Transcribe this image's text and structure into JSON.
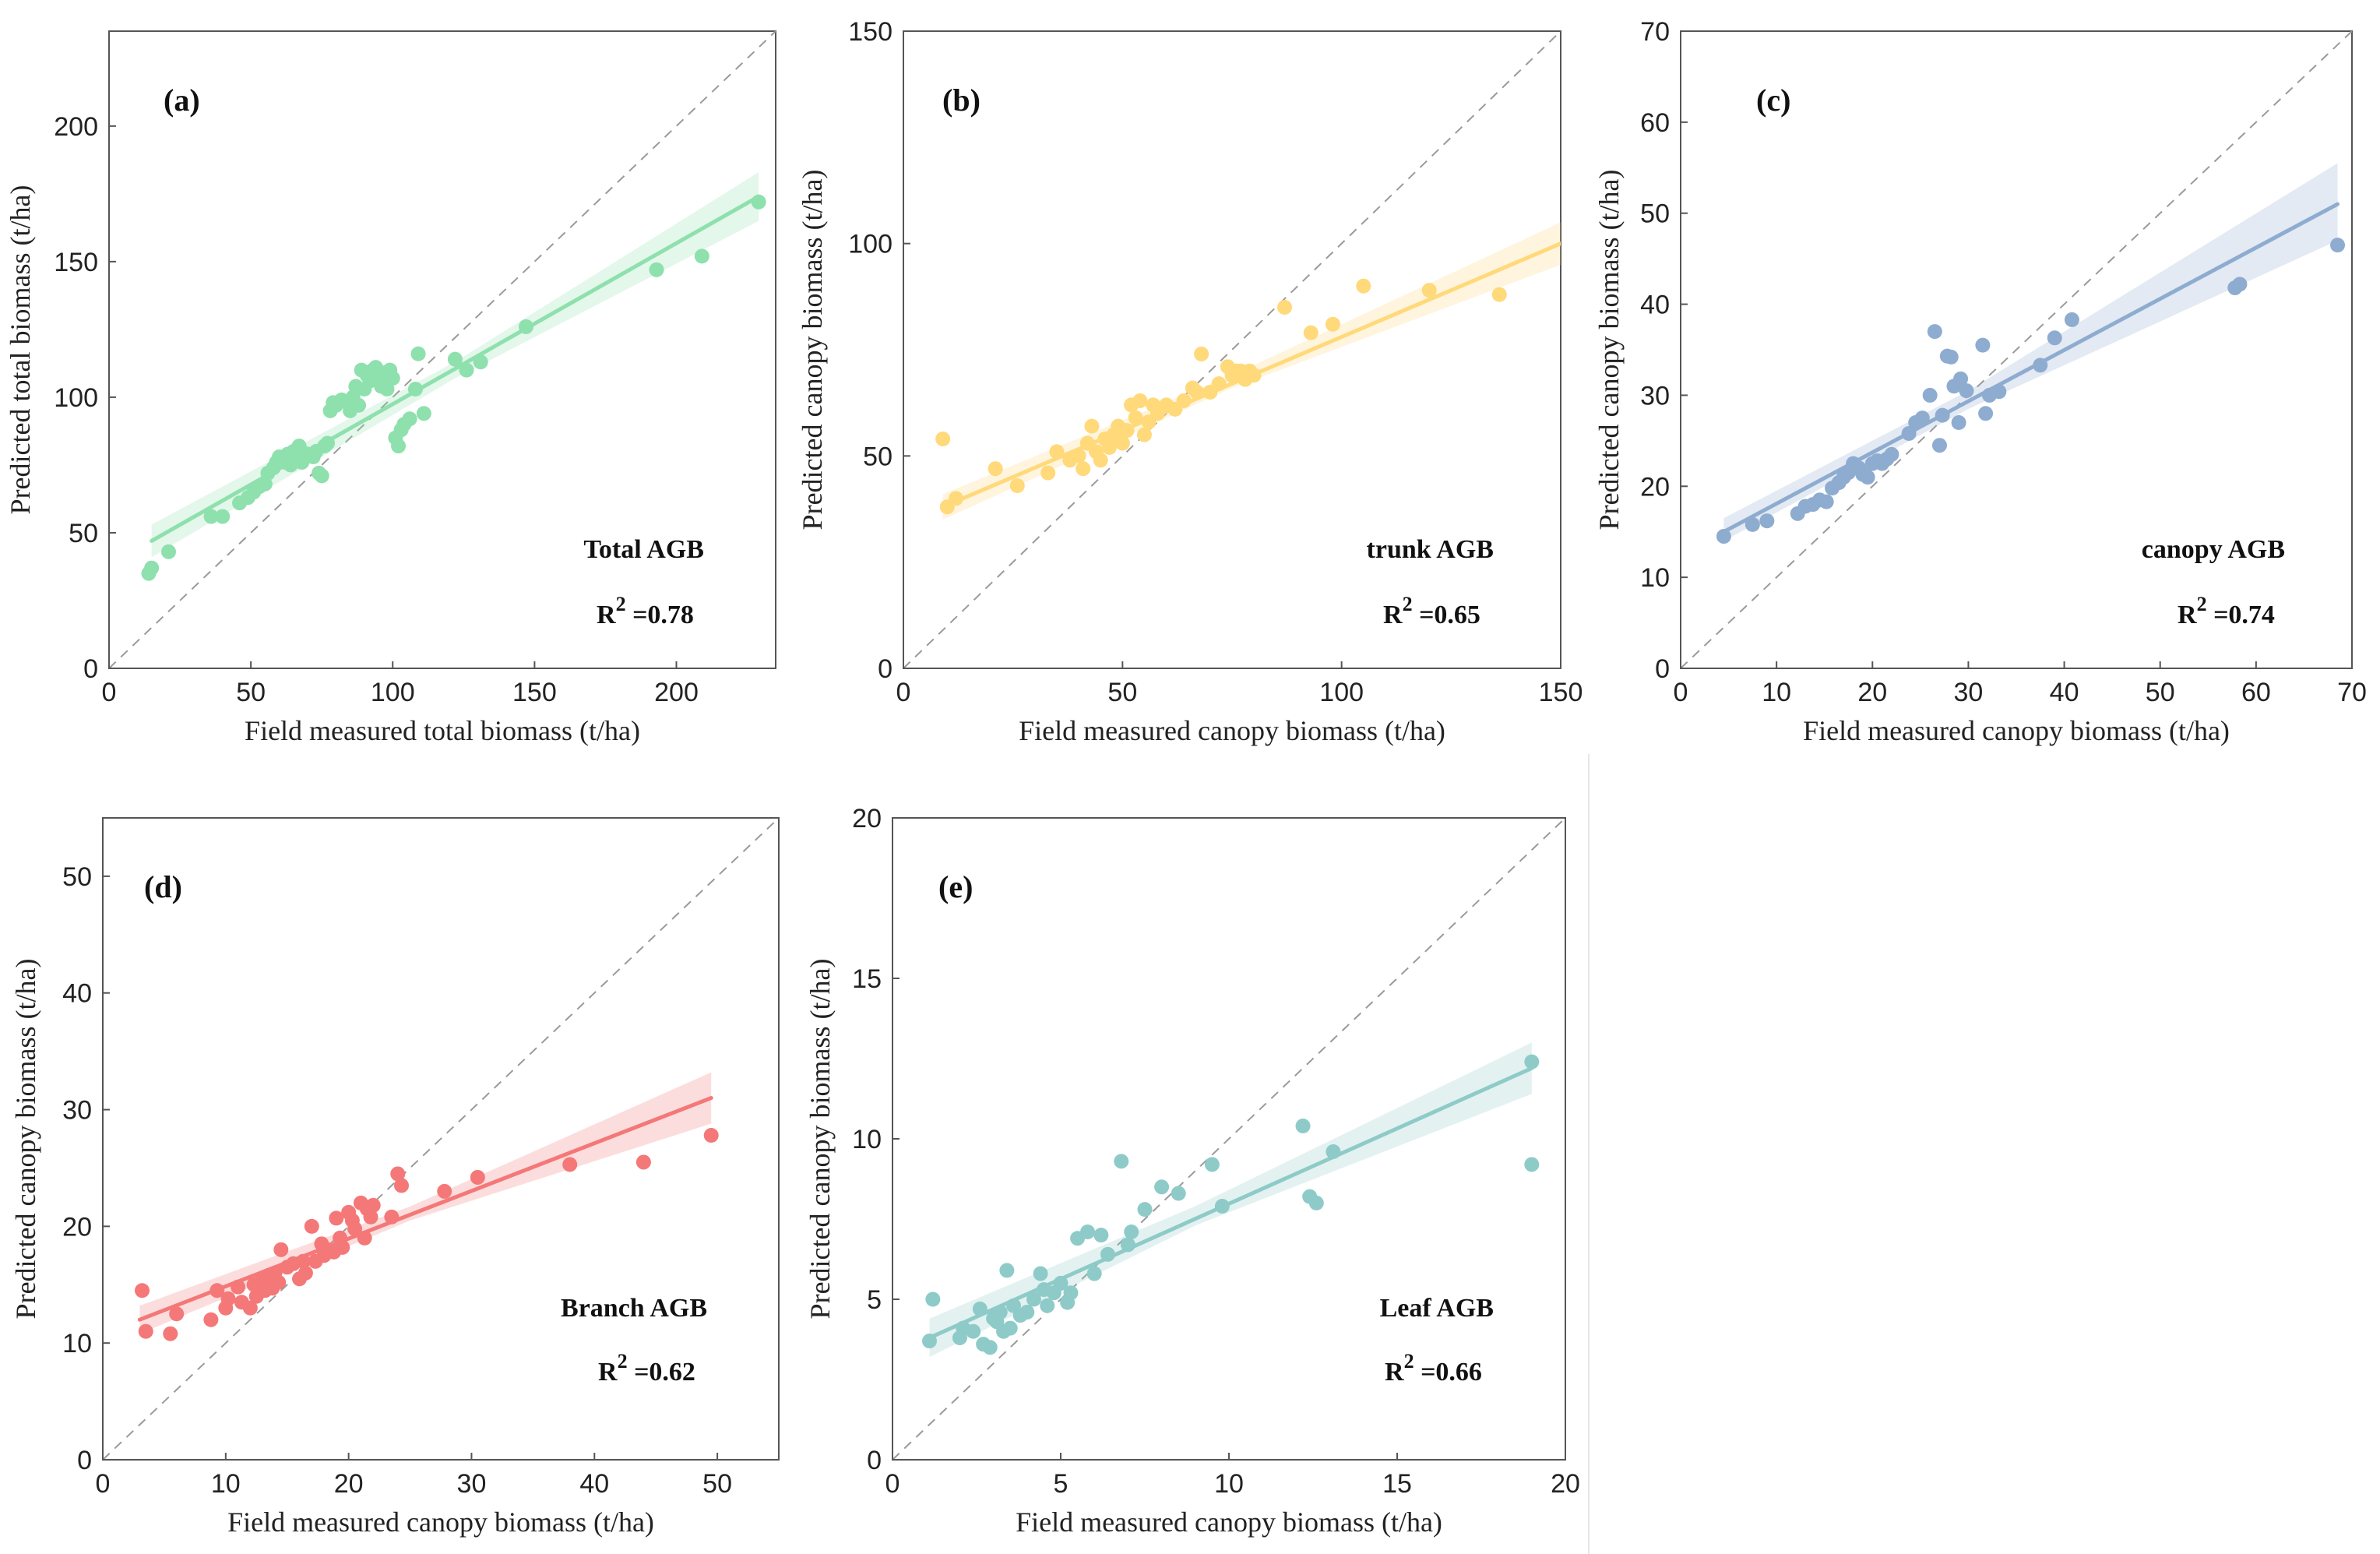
{
  "chart_data": [
    {
      "panel_label": "(a)",
      "type": "scatter",
      "color": "#8ee0ad",
      "xlabel": "Field measured total biomass (t/ha)",
      "ylabel": "Predicted total biomass (t/ha)",
      "xlim": [
        0,
        235
      ],
      "ylim": [
        0,
        235
      ],
      "xticks": [
        0,
        50,
        100,
        150,
        200
      ],
      "yticks": [
        0,
        50,
        100,
        150,
        200
      ],
      "annotation": "Total AGB",
      "r2_label": "R",
      "r2_sup": "2",
      "r2_value": " =0.78",
      "fit": {
        "x1": 15,
        "y1": 47,
        "x2": 229,
        "y2": 174
      },
      "band": [
        [
          15,
          41,
          53
        ],
        [
          122,
          107,
          113
        ],
        [
          229,
          165,
          183
        ]
      ],
      "points": [
        [
          14,
          35
        ],
        [
          15,
          37
        ],
        [
          21,
          43
        ],
        [
          36,
          56
        ],
        [
          40,
          56
        ],
        [
          46,
          61
        ],
        [
          49,
          63
        ],
        [
          51,
          65
        ],
        [
          53,
          67
        ],
        [
          55,
          68
        ],
        [
          56,
          72
        ],
        [
          58,
          74
        ],
        [
          59,
          76
        ],
        [
          60,
          78
        ],
        [
          61,
          77
        ],
        [
          62,
          76
        ],
        [
          63,
          79
        ],
        [
          64,
          75
        ],
        [
          65,
          80
        ],
        [
          66,
          78
        ],
        [
          67,
          82
        ],
        [
          68,
          80
        ],
        [
          68,
          76
        ],
        [
          70,
          79
        ],
        [
          72,
          78
        ],
        [
          73,
          80
        ],
        [
          74,
          72
        ],
        [
          75,
          71
        ],
        [
          76,
          82
        ],
        [
          77,
          83
        ],
        [
          78,
          95
        ],
        [
          79,
          98
        ],
        [
          80,
          97
        ],
        [
          82,
          99
        ],
        [
          84,
          98
        ],
        [
          85,
          95
        ],
        [
          86,
          100
        ],
        [
          87,
          104
        ],
        [
          88,
          97
        ],
        [
          89,
          110
        ],
        [
          90,
          103
        ],
        [
          91,
          108
        ],
        [
          92,
          106
        ],
        [
          93,
          110
        ],
        [
          94,
          111
        ],
        [
          95,
          107
        ],
        [
          96,
          104
        ],
        [
          97,
          109
        ],
        [
          98,
          103
        ],
        [
          99,
          110
        ],
        [
          100,
          107
        ],
        [
          101,
          85
        ],
        [
          102,
          82
        ],
        [
          103,
          88
        ],
        [
          104,
          90
        ],
        [
          106,
          92
        ],
        [
          108,
          103
        ],
        [
          109,
          116
        ],
        [
          111,
          94
        ],
        [
          122,
          114
        ],
        [
          126,
          110
        ],
        [
          131,
          113
        ],
        [
          147,
          126
        ],
        [
          193,
          147
        ],
        [
          209,
          152
        ],
        [
          229,
          172
        ]
      ]
    },
    {
      "panel_label": "(b)",
      "type": "scatter",
      "color": "#ffd97a",
      "xlabel": "Field measured canopy biomass (t/ha)",
      "ylabel": "Predicted canopy biomass (t/ha)",
      "xlim": [
        0,
        150
      ],
      "ylim": [
        0,
        150
      ],
      "xticks": [
        0,
        50,
        100,
        150
      ],
      "yticks": [
        0,
        50,
        100,
        150
      ],
      "annotation": "trunk AGB",
      "r2_label": "R",
      "r2_sup": "2",
      "r2_value": " =0.65",
      "fit": {
        "x1": 9,
        "y1": 38,
        "x2": 150,
        "y2": 100
      },
      "band": [
        [
          9,
          35,
          41
        ],
        [
          75,
          66,
          69
        ],
        [
          150,
          95,
          105
        ]
      ],
      "points": [
        [
          9,
          54
        ],
        [
          10,
          38
        ],
        [
          12,
          40
        ],
        [
          21,
          47
        ],
        [
          26,
          43
        ],
        [
          33,
          46
        ],
        [
          35,
          51
        ],
        [
          38,
          49
        ],
        [
          40,
          50
        ],
        [
          41,
          47
        ],
        [
          42,
          53
        ],
        [
          43,
          57
        ],
        [
          44,
          51
        ],
        [
          45,
          49
        ],
        [
          46,
          54
        ],
        [
          47,
          52
        ],
        [
          48,
          55
        ],
        [
          49,
          57
        ],
        [
          50,
          53
        ],
        [
          51,
          56
        ],
        [
          52,
          62
        ],
        [
          53,
          59
        ],
        [
          54,
          63
        ],
        [
          55,
          55
        ],
        [
          56,
          58
        ],
        [
          57,
          62
        ],
        [
          58,
          60
        ],
        [
          60,
          62
        ],
        [
          62,
          61
        ],
        [
          64,
          63
        ],
        [
          66,
          66
        ],
        [
          67,
          65
        ],
        [
          68,
          74
        ],
        [
          70,
          65
        ],
        [
          72,
          67
        ],
        [
          74,
          71
        ],
        [
          75,
          69
        ],
        [
          76,
          70
        ],
        [
          77,
          70
        ],
        [
          78,
          68
        ],
        [
          79,
          70
        ],
        [
          80,
          69
        ],
        [
          87,
          85
        ],
        [
          93,
          79
        ],
        [
          98,
          81
        ],
        [
          105,
          90
        ],
        [
          120,
          89
        ],
        [
          136,
          88
        ]
      ]
    },
    {
      "panel_label": "(c)",
      "type": "scatter",
      "color": "#8eaccf",
      "xlabel": "Field measured canopy biomass (t/ha)",
      "ylabel": "Predicted canopy biomass (t/ha)",
      "xlim": [
        0,
        70
      ],
      "ylim": [
        0,
        70
      ],
      "xticks": [
        0,
        10,
        20,
        30,
        40,
        50,
        60,
        70
      ],
      "yticks": [
        0,
        10,
        20,
        30,
        40,
        50,
        60,
        70
      ],
      "annotation": "canopy AGB",
      "r2_label": "R",
      "r2_sup": "2",
      "r2_value": " =0.74",
      "fit": {
        "x1": 4.5,
        "y1": 15,
        "x2": 68.5,
        "y2": 51
      },
      "band": [
        [
          4.5,
          14,
          16.5
        ],
        [
          30,
          28.5,
          30.5
        ],
        [
          68.5,
          47,
          55.5
        ]
      ],
      "points": [
        [
          4.5,
          14.5
        ],
        [
          7.5,
          15.8
        ],
        [
          9,
          16.2
        ],
        [
          12.2,
          17
        ],
        [
          13,
          17.8
        ],
        [
          13.8,
          18
        ],
        [
          14.5,
          18.5
        ],
        [
          15.2,
          18.3
        ],
        [
          15.8,
          19.8
        ],
        [
          16.5,
          20.4
        ],
        [
          17,
          21
        ],
        [
          17.5,
          21.5
        ],
        [
          18,
          22.5
        ],
        [
          18.6,
          22
        ],
        [
          19,
          21.3
        ],
        [
          19.5,
          21
        ],
        [
          20,
          22.5
        ],
        [
          20.5,
          22.8
        ],
        [
          21,
          22.5
        ],
        [
          21.5,
          23
        ],
        [
          22,
          23.5
        ],
        [
          23.8,
          25.8
        ],
        [
          24.5,
          27
        ],
        [
          25.2,
          27.5
        ],
        [
          26,
          30
        ],
        [
          26.5,
          37
        ],
        [
          27,
          24.5
        ],
        [
          27.3,
          27.8
        ],
        [
          27.8,
          34.3
        ],
        [
          28.2,
          34.2
        ],
        [
          28.5,
          31
        ],
        [
          29,
          27
        ],
        [
          29.2,
          31.8
        ],
        [
          29.8,
          30.5
        ],
        [
          31.5,
          35.5
        ],
        [
          31.8,
          28
        ],
        [
          32.2,
          30
        ],
        [
          33.2,
          30.4
        ],
        [
          37.5,
          33.3
        ],
        [
          39,
          36.3
        ],
        [
          40.8,
          38.3
        ],
        [
          57.8,
          41.8
        ],
        [
          58.3,
          42.2
        ],
        [
          68.5,
          46.5
        ]
      ]
    },
    {
      "panel_label": "(d)",
      "type": "scatter",
      "color": "#f47878",
      "xlabel": "Field measured canopy biomass (t/ha)",
      "ylabel": "Predicted canopy biomass (t/ha)",
      "xlim": [
        0,
        55
      ],
      "ylim": [
        0,
        55
      ],
      "xticks": [
        0,
        10,
        20,
        30,
        40,
        50
      ],
      "yticks": [
        0,
        10,
        20,
        30,
        40,
        50
      ],
      "annotation": "Branch AGB",
      "r2_label": "R",
      "r2_sup": "2",
      "r2_value": " =0.62",
      "fit": {
        "x1": 3,
        "y1": 12,
        "x2": 49.5,
        "y2": 31
      },
      "band": [
        [
          3,
          10.8,
          13.2
        ],
        [
          25,
          20.5,
          21.7
        ],
        [
          49.5,
          28.8,
          33.2
        ]
      ],
      "points": [
        [
          3.2,
          14.5
        ],
        [
          3.5,
          11
        ],
        [
          5.5,
          10.8
        ],
        [
          6,
          12.5
        ],
        [
          8.8,
          12
        ],
        [
          9.3,
          14.5
        ],
        [
          10,
          13
        ],
        [
          10.2,
          13.8
        ],
        [
          11,
          14.8
        ],
        [
          11.3,
          13.5
        ],
        [
          12,
          13
        ],
        [
          12.3,
          15
        ],
        [
          12.5,
          14
        ],
        [
          13,
          15.5
        ],
        [
          13.2,
          14.5
        ],
        [
          13.5,
          15.8
        ],
        [
          13.8,
          14.7
        ],
        [
          14,
          16
        ],
        [
          14.3,
          15.2
        ],
        [
          14.5,
          18
        ],
        [
          15,
          16.5
        ],
        [
          15.5,
          16.8
        ],
        [
          16,
          15.5
        ],
        [
          16.3,
          17
        ],
        [
          16.5,
          16
        ],
        [
          17,
          20
        ],
        [
          17.3,
          17
        ],
        [
          17.8,
          18.5
        ],
        [
          18,
          17.5
        ],
        [
          18.3,
          18
        ],
        [
          18.8,
          17.8
        ],
        [
          19,
          20.7
        ],
        [
          19.3,
          19
        ],
        [
          19.5,
          18.2
        ],
        [
          20,
          21.2
        ],
        [
          20.3,
          20.5
        ],
        [
          20.5,
          19.8
        ],
        [
          21,
          22
        ],
        [
          21.3,
          19
        ],
        [
          21.5,
          21.5
        ],
        [
          21.8,
          20.8
        ],
        [
          22,
          21.8
        ],
        [
          23.5,
          20.8
        ],
        [
          24,
          24.5
        ],
        [
          24.3,
          23.5
        ],
        [
          27.8,
          23
        ],
        [
          30.5,
          24.2
        ],
        [
          38,
          25.3
        ],
        [
          44,
          25.5
        ],
        [
          49.5,
          27.8
        ]
      ]
    },
    {
      "panel_label": "(e)",
      "type": "scatter",
      "color": "#8ecbc8",
      "xlabel": "Field measured canopy biomass (t/ha)",
      "ylabel": "Predicted canopy biomass (t/ha)",
      "xlim": [
        0,
        20
      ],
      "ylim": [
        0,
        20
      ],
      "xticks": [
        0,
        5,
        10,
        15,
        20
      ],
      "yticks": [
        0,
        5,
        10,
        15,
        20
      ],
      "annotation": "Leaf AGB",
      "r2_label": "R",
      "r2_sup": "2",
      "r2_value": " =0.66",
      "fit": {
        "x1": 1.1,
        "y1": 3.8,
        "x2": 19,
        "y2": 12.2
      },
      "band": [
        [
          1.1,
          3.2,
          4.4
        ],
        [
          9,
          7.3,
          7.9
        ],
        [
          19,
          11.4,
          13
        ]
      ],
      "points": [
        [
          1.1,
          3.7
        ],
        [
          1.2,
          5
        ],
        [
          2,
          3.8
        ],
        [
          2.1,
          4.1
        ],
        [
          2.4,
          4
        ],
        [
          2.6,
          4.7
        ],
        [
          2.7,
          3.6
        ],
        [
          2.9,
          3.5
        ],
        [
          3,
          4.4
        ],
        [
          3.1,
          4.3
        ],
        [
          3.2,
          4.6
        ],
        [
          3.3,
          4
        ],
        [
          3.4,
          5.9
        ],
        [
          3.5,
          4.1
        ],
        [
          3.6,
          4.8
        ],
        [
          3.8,
          4.5
        ],
        [
          4,
          4.6
        ],
        [
          4.2,
          5
        ],
        [
          4.4,
          5.8
        ],
        [
          4.5,
          5.3
        ],
        [
          4.6,
          4.8
        ],
        [
          4.8,
          5.2
        ],
        [
          5,
          5.5
        ],
        [
          5.2,
          4.9
        ],
        [
          5.3,
          5.2
        ],
        [
          5.5,
          6.9
        ],
        [
          5.8,
          7.1
        ],
        [
          6,
          5.8
        ],
        [
          6.2,
          7
        ],
        [
          6.4,
          6.4
        ],
        [
          6.8,
          9.3
        ],
        [
          7,
          6.7
        ],
        [
          7.1,
          7.1
        ],
        [
          7.5,
          7.8
        ],
        [
          8,
          8.5
        ],
        [
          8.5,
          8.3
        ],
        [
          9.5,
          9.2
        ],
        [
          9.8,
          7.9
        ],
        [
          12.2,
          10.4
        ],
        [
          12.4,
          8.2
        ],
        [
          12.6,
          8
        ],
        [
          13.1,
          9.6
        ],
        [
          19,
          12.4
        ],
        [
          19,
          9.2
        ]
      ]
    }
  ]
}
